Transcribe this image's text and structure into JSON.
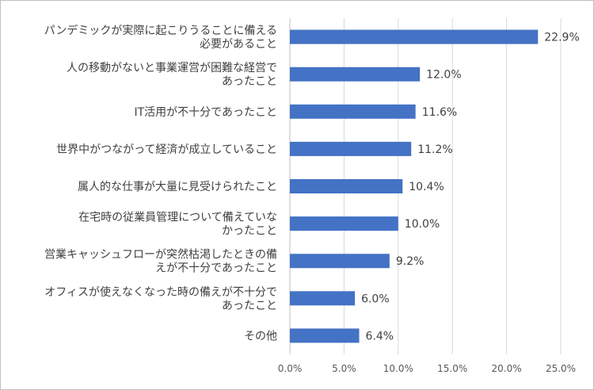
{
  "chart_data": {
    "type": "bar",
    "orientation": "horizontal",
    "categories": [
      [
        "パンデミックが実際に起こりうることに備える",
        "必要があること"
      ],
      [
        "人の移動がないと事業運営が困難な経営で",
        "あったこと"
      ],
      [
        "IT活用が不十分であったこと"
      ],
      [
        "世界中がつながって経済が成立していること"
      ],
      [
        "属人的な仕事が大量に見受けられたこと"
      ],
      [
        "在宅時の従業員管理について備えていな",
        "かったこと"
      ],
      [
        "営業キャッシュフローが突然枯渇したときの備",
        "えが不十分であったこと"
      ],
      [
        "オフィスが使えなくなった時の備えが不十分で",
        "あったこと"
      ],
      [
        "その他"
      ]
    ],
    "values": [
      22.9,
      12.0,
      11.6,
      11.2,
      10.4,
      10.0,
      9.2,
      6.0,
      6.4
    ],
    "value_labels": [
      "22.9%",
      "12.0%",
      "11.6%",
      "11.2%",
      "10.4%",
      "10.0%",
      "9.2%",
      "6.0%",
      "6.4%"
    ],
    "xlim": [
      0,
      25
    ],
    "xticks": [
      0,
      5,
      10,
      15,
      20,
      25
    ],
    "xtick_labels": [
      "0.0%",
      "5.0%",
      "10.0%",
      "15.0%",
      "20.0%",
      "25.0%"
    ],
    "grid": true,
    "legend": "none",
    "colors": {
      "bar": "#4472c4"
    }
  }
}
